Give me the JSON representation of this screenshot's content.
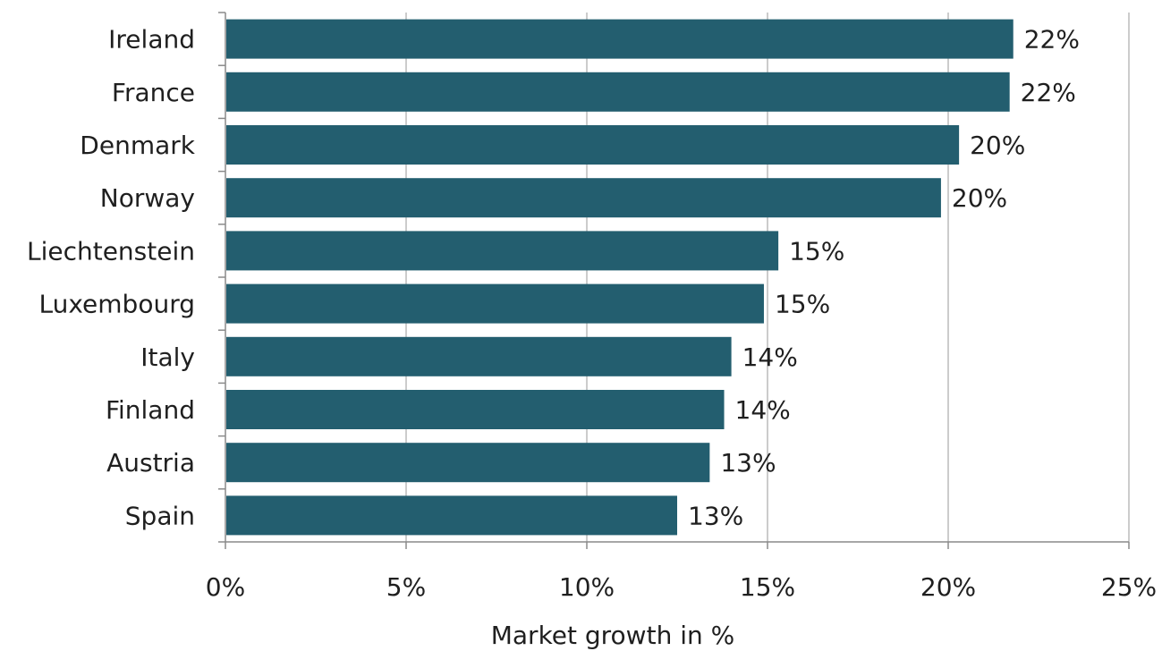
{
  "chart_data": {
    "type": "bar",
    "orientation": "horizontal",
    "title": "",
    "xlabel": "Market growth in %",
    "ylabel": "",
    "categories": [
      "Ireland",
      "France",
      "Denmark",
      "Norway",
      "Liechtenstein",
      "Luxembourg",
      "Italy",
      "Finland",
      "Austria",
      "Spain"
    ],
    "series": [
      {
        "values": [
          21.8,
          21.7,
          20.3,
          19.8,
          15.3,
          14.9,
          14.0,
          13.8,
          13.4,
          12.5
        ],
        "data_labels": [
          "22%",
          "22%",
          "20%",
          "20%",
          "15%",
          "15%",
          "14%",
          "14%",
          "13%",
          "13%"
        ]
      }
    ],
    "xlim": [
      0,
      25
    ],
    "x_ticks": [
      0,
      5,
      10,
      15,
      20,
      25
    ],
    "x_tick_labels": [
      "0%",
      "5%",
      "10%",
      "15%",
      "20%",
      "25%"
    ],
    "grid": "vertical",
    "legend": "none",
    "colors": {
      "bar": "#235e6f",
      "grid": "#9a9a9a",
      "axis": "#8a8a8a",
      "text": "#1f1f1f"
    }
  }
}
